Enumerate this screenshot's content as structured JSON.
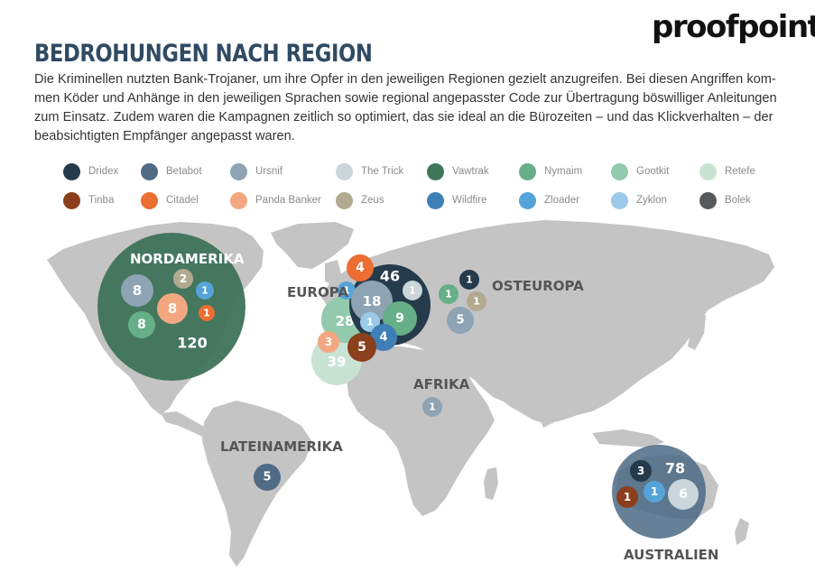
{
  "brand": {
    "logo_text": "proofpoint."
  },
  "title": "BEDROHUNGEN NACH REGION",
  "intro_lines": [
    "Die Kriminellen nutzten Bank-Trojaner, um ihre Opfer in den jeweiligen Regionen gezielt anzugreifen. Bei diesen Angriffen kom-",
    "men Köder und Anhänge in den jeweiligen Sprachen sowie regional angepasster Code zur Übertragung böswilliger Anleitungen",
    "zum Einsatz. Zudem waren die Kampagnen zeitlich so optimiert, das sie ideal an die Bürozeiten – und das Klickverhalten – der",
    "beabsichtigten Empfänger angepasst waren."
  ],
  "legend": [
    {
      "label": "Dridex",
      "color": "#253a4b"
    },
    {
      "label": "Betabot",
      "color": "#4f6b85"
    },
    {
      "label": "Ursnif",
      "color": "#8ea3b3"
    },
    {
      "label": "The Trick",
      "color": "#cad5dc"
    },
    {
      "label": "Vawtrak",
      "color": "#3f7658"
    },
    {
      "label": "Nymaim",
      "color": "#66af88"
    },
    {
      "label": "Gootkit",
      "color": "#93c9ad"
    },
    {
      "label": "Retefe",
      "color": "#c8e2d4"
    },
    {
      "label": "Tinba",
      "color": "#8b3f1c"
    },
    {
      "label": "Citadel",
      "color": "#ec6e32"
    },
    {
      "label": "Panda Banker",
      "color": "#f2a781"
    },
    {
      "label": "Zeus",
      "color": "#b1aa90"
    },
    {
      "label": "Wildfire",
      "color": "#3f7fb7"
    },
    {
      "label": "Zloader",
      "color": "#55a3d8"
    },
    {
      "label": "Zyklon",
      "color": "#9bc9ea"
    },
    {
      "label": "Bolek",
      "color": "#55585c"
    }
  ],
  "regions": [
    {
      "name": "NORDAMERIKA",
      "background_color": "#3e7358",
      "bubbles": [
        {
          "family": "Ursnif",
          "value": 8
        },
        {
          "family": "Zeus",
          "value": 2
        },
        {
          "family": "Zloader",
          "value": 1
        },
        {
          "family": "Panda Banker",
          "value": 8
        },
        {
          "family": "Citadel",
          "value": 1
        },
        {
          "family": "Nymaim",
          "value": 8
        },
        {
          "family": "Vawtrak",
          "value": 120
        }
      ]
    },
    {
      "name": "EUROPA",
      "bubbles": [
        {
          "family": "Citadel",
          "value": 4
        },
        {
          "family": "Dridex",
          "value": 46
        },
        {
          "family": "Zloader",
          "value": 1
        },
        {
          "family": "Ursnif",
          "value": 18
        },
        {
          "family": "The Trick",
          "value": 1
        },
        {
          "family": "Gootkit",
          "value": 28
        },
        {
          "family": "Zyklon",
          "value": 1
        },
        {
          "family": "Nymaim",
          "value": 9
        },
        {
          "family": "Wildfire",
          "value": 4
        },
        {
          "family": "Panda Banker",
          "value": 3
        },
        {
          "family": "Tinba",
          "value": 5
        },
        {
          "family": "Retefe",
          "value": 39
        }
      ]
    },
    {
      "name": "OSTEUROPA",
      "bubbles": [
        {
          "family": "Dridex",
          "value": 1
        },
        {
          "family": "Nymaim",
          "value": 1
        },
        {
          "family": "Zeus",
          "value": 1
        },
        {
          "family": "Ursnif",
          "value": 5
        }
      ]
    },
    {
      "name": "AFRIKA",
      "bubbles": [
        {
          "family": "Ursnif",
          "value": 1
        }
      ]
    },
    {
      "name": "LATEINAMERIKA",
      "bubbles": [
        {
          "family": "Betabot",
          "value": 5
        }
      ]
    },
    {
      "name": "AUSTRALIEN",
      "background_color": "#4a6a85",
      "bubbles": [
        {
          "family": "Dridex",
          "value": 3
        },
        {
          "family": "Betabot",
          "value": 78
        },
        {
          "family": "Tinba",
          "value": 1
        },
        {
          "family": "Zloader",
          "value": 1
        },
        {
          "family": "The Trick",
          "value": 6
        }
      ]
    }
  ],
  "map_land_color": "#c4c4c4"
}
